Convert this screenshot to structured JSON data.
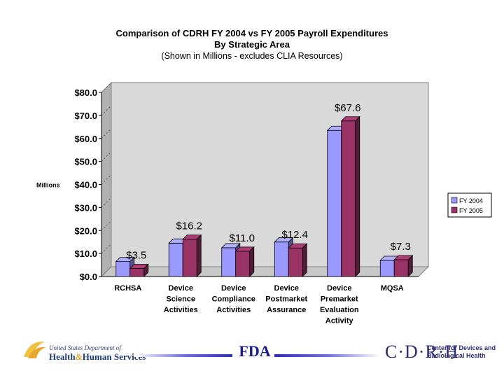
{
  "chart_data": {
    "type": "bar",
    "title": "Comparison of CDRH FY 2004 vs FY 2005 Payroll Expenditures",
    "subtitle1": "By Strategic Area",
    "subtitle2": "(Shown in Millions - excludes CLIA Resources)",
    "ylabel": "Millions",
    "ylim": [
      0,
      80
    ],
    "yticks": [
      0,
      10,
      20,
      30,
      40,
      50,
      60,
      70,
      80
    ],
    "ytick_labels": [
      "$0.0",
      "$10.0",
      "$20.0",
      "$30.0",
      "$40.0",
      "$50.0",
      "$60.0",
      "$70.0",
      "$80.0"
    ],
    "categories": [
      [
        "RCHSA"
      ],
      [
        "Device",
        "Science",
        "Activities"
      ],
      [
        "Device",
        "Compliance",
        "Activities"
      ],
      [
        "Device",
        "Postmarket",
        "Assurance"
      ],
      [
        "Device",
        "Premarket",
        "Evaluation",
        "Activity"
      ],
      [
        "MQSA"
      ]
    ],
    "series": [
      {
        "name": "FY 2004",
        "values": [
          6.5,
          14.5,
          12.5,
          15.0,
          63.5,
          7.0
        ],
        "color": "#9999ff"
      },
      {
        "name": "FY 2005",
        "values": [
          3.5,
          16.2,
          11.0,
          12.4,
          67.6,
          7.3
        ],
        "color": "#993366"
      }
    ],
    "data_labels": [
      "$3.5",
      "$16.2",
      "$11.0",
      "$12.4",
      "$67.6",
      "$7.3"
    ],
    "legend_position": "right",
    "grid": false
  },
  "footer": {
    "hhs_line1": "United States Department of",
    "hhs_health": "Health",
    "hhs_amp": "&",
    "hhs_human": "Human Services",
    "fda_text": "FDA",
    "cdrh_mark": "C·D·R·H",
    "cdrh_line1": "Center for Devices and",
    "cdrh_line2": "Radiological Health"
  }
}
